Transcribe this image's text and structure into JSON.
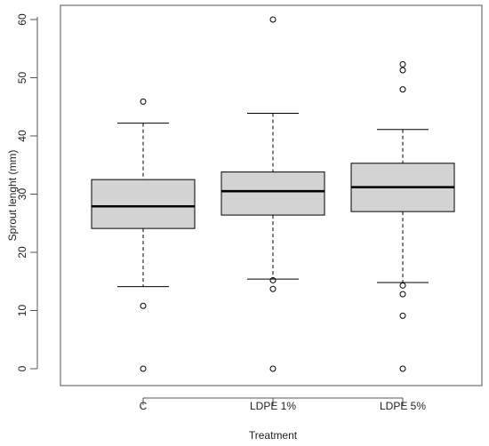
{
  "chart_data": {
    "type": "boxplot",
    "xlabel": "Treatment",
    "ylabel": "Sprout lenght (mm)",
    "ylim": [
      -2,
      62
    ],
    "yticks": [
      0,
      10,
      20,
      30,
      40,
      50,
      60
    ],
    "categories": [
      "C",
      "LDPE 1%",
      "LDPE 5%"
    ],
    "boxes": [
      {
        "label": "C",
        "whisker_low": 14.1,
        "q1": 24.1,
        "median": 27.9,
        "q3": 32.5,
        "whisker_high": 42.2,
        "outliers": [
          0.0,
          10.8,
          45.9
        ]
      },
      {
        "label": "LDPE 1%",
        "whisker_low": 15.4,
        "q1": 26.4,
        "median": 30.5,
        "q3": 33.8,
        "whisker_high": 43.9,
        "outliers": [
          0.0,
          13.7,
          15.2,
          60.0
        ]
      },
      {
        "label": "LDPE 5%",
        "whisker_low": 14.8,
        "q1": 27.0,
        "median": 31.2,
        "q3": 35.3,
        "whisker_high": 41.1,
        "outliers": [
          0.0,
          9.1,
          12.8,
          14.3,
          48.0,
          51.3,
          52.3
        ]
      }
    ],
    "colors": {
      "box_fill": "#d3d3d3",
      "stroke": "#000000",
      "frame": "#555555"
    },
    "grid": false,
    "legend": "none"
  }
}
